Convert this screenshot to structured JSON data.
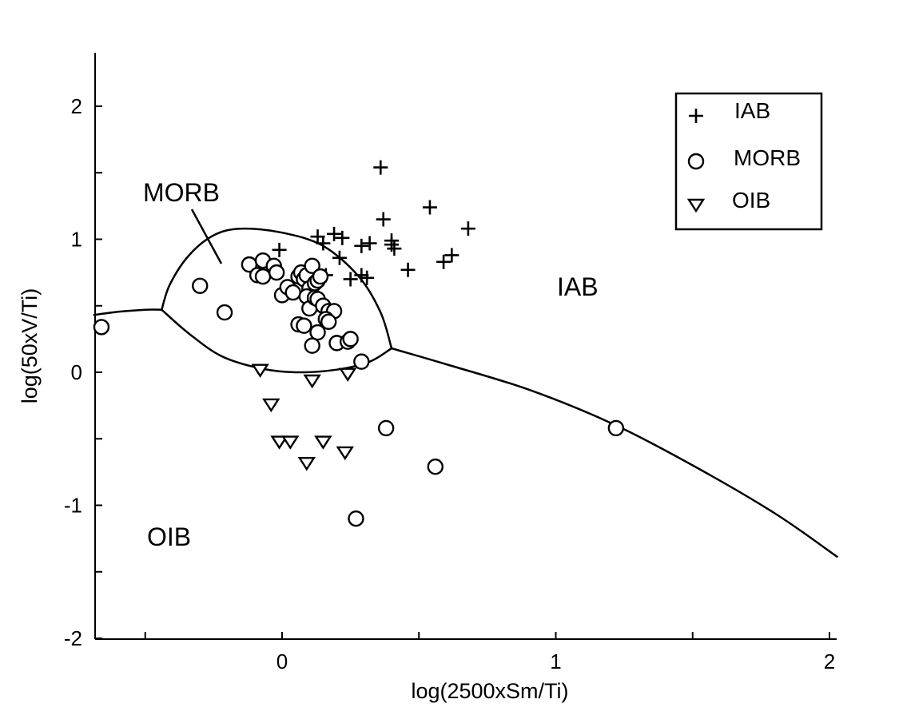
{
  "chart_data": {
    "type": "scatter",
    "title": "",
    "xlabel": "log(2500xSm/Ti)",
    "ylabel": "log(50xV/Ti)",
    "xlim": [
      -0.69,
      2.03
    ],
    "ylim": [
      -2.0,
      2.4
    ],
    "xticks": [
      -0.5,
      0,
      0.5,
      1,
      1.5,
      2
    ],
    "xtick_labels": [
      "0",
      "1",
      "2"
    ],
    "yticks": [
      -2,
      -1.5,
      -1,
      -0.5,
      0,
      0.5,
      1,
      1.5,
      2
    ],
    "ytick_labels": [
      "-2",
      "-1",
      "0",
      "1",
      "2"
    ],
    "grid": false,
    "legend_position": "top-right",
    "region_labels": [
      {
        "text": "MORB",
        "x": -0.51,
        "y": 1.35
      },
      {
        "text": "IAB",
        "x": 1.03,
        "y": 0.62
      },
      {
        "text": "OIB",
        "x": -0.49,
        "y": -1.25
      }
    ],
    "boundaries": [
      {
        "name": "left",
        "points": [
          [
            -0.69,
            0.43
          ],
          [
            -0.6,
            0.455
          ],
          [
            -0.5,
            0.47
          ],
          [
            -0.44,
            0.47
          ]
        ]
      },
      {
        "name": "morb-top",
        "points": [
          [
            -0.44,
            0.47
          ],
          [
            -0.41,
            0.66
          ],
          [
            -0.34,
            0.88
          ],
          [
            -0.25,
            1.03
          ],
          [
            -0.15,
            1.08
          ],
          [
            0.0,
            1.05
          ],
          [
            0.15,
            0.95
          ],
          [
            0.28,
            0.72
          ],
          [
            0.36,
            0.45
          ],
          [
            0.4,
            0.18
          ]
        ]
      },
      {
        "name": "morb-bottom",
        "points": [
          [
            -0.44,
            0.47
          ],
          [
            -0.34,
            0.29
          ],
          [
            -0.22,
            0.12
          ],
          [
            -0.08,
            0.03
          ],
          [
            0.05,
            0.0
          ],
          [
            0.2,
            0.02
          ],
          [
            0.32,
            0.08
          ],
          [
            0.4,
            0.18
          ]
        ]
      },
      {
        "name": "iab-oib",
        "points": [
          [
            0.4,
            0.18
          ],
          [
            0.6,
            0.06
          ],
          [
            0.9,
            -0.13
          ],
          [
            1.2,
            -0.38
          ],
          [
            1.5,
            -0.7
          ],
          [
            1.8,
            -1.06
          ],
          [
            2.03,
            -1.39
          ]
        ]
      }
    ],
    "series": [
      {
        "name": "IAB",
        "marker": "plus",
        "points": [
          [
            0.36,
            1.54
          ],
          [
            0.54,
            1.24
          ],
          [
            0.37,
            1.15
          ],
          [
            0.68,
            1.08
          ],
          [
            0.19,
            1.04
          ],
          [
            0.13,
            1.02
          ],
          [
            0.22,
            1.01
          ],
          [
            0.15,
            0.97
          ],
          [
            0.29,
            0.95
          ],
          [
            0.32,
            0.97
          ],
          [
            0.4,
            0.99
          ],
          [
            0.4,
            0.96
          ],
          [
            0.41,
            0.93
          ],
          [
            -0.01,
            0.92
          ],
          [
            0.21,
            0.86
          ],
          [
            0.62,
            0.88
          ],
          [
            0.59,
            0.83
          ],
          [
            0.46,
            0.77
          ],
          [
            0.29,
            0.73
          ],
          [
            0.31,
            0.71
          ],
          [
            0.25,
            0.7
          ],
          [
            0.16,
            0.73
          ]
        ]
      },
      {
        "name": "MORB",
        "marker": "circle",
        "points": [
          [
            -0.66,
            0.34
          ],
          [
            -0.3,
            0.65
          ],
          [
            -0.21,
            0.45
          ],
          [
            -0.12,
            0.81
          ],
          [
            -0.09,
            0.73
          ],
          [
            -0.07,
            0.84
          ],
          [
            -0.07,
            0.72
          ],
          [
            -0.03,
            0.8
          ],
          [
            -0.02,
            0.75
          ],
          [
            0.0,
            0.58
          ],
          [
            0.02,
            0.64
          ],
          [
            0.04,
            0.6
          ],
          [
            0.06,
            0.72
          ],
          [
            0.07,
            0.75
          ],
          [
            0.08,
            0.7
          ],
          [
            0.09,
            0.73
          ],
          [
            0.1,
            0.63
          ],
          [
            0.11,
            0.8
          ],
          [
            0.12,
            0.67
          ],
          [
            0.13,
            0.69
          ],
          [
            0.14,
            0.72
          ],
          [
            0.09,
            0.57
          ],
          [
            0.1,
            0.48
          ],
          [
            0.12,
            0.56
          ],
          [
            0.13,
            0.55
          ],
          [
            0.15,
            0.5
          ],
          [
            0.17,
            0.46
          ],
          [
            0.19,
            0.46
          ],
          [
            0.16,
            0.4
          ],
          [
            0.17,
            0.38
          ],
          [
            0.06,
            0.36
          ],
          [
            0.08,
            0.35
          ],
          [
            0.13,
            0.3
          ],
          [
            0.11,
            0.2
          ],
          [
            0.2,
            0.22
          ],
          [
            0.24,
            0.23
          ],
          [
            0.25,
            0.25
          ],
          [
            0.29,
            0.08
          ],
          [
            0.38,
            -0.42
          ],
          [
            0.56,
            -0.71
          ],
          [
            0.27,
            -1.1
          ],
          [
            1.22,
            -0.42
          ]
        ]
      },
      {
        "name": "OIB",
        "marker": "triangle-down",
        "points": [
          [
            -0.08,
            0.02
          ],
          [
            0.11,
            -0.06
          ],
          [
            0.24,
            -0.01
          ],
          [
            -0.04,
            -0.24
          ],
          [
            -0.01,
            -0.52
          ],
          [
            0.03,
            -0.52
          ],
          [
            0.15,
            -0.52
          ],
          [
            0.09,
            -0.68
          ],
          [
            0.23,
            -0.6
          ]
        ]
      }
    ]
  }
}
